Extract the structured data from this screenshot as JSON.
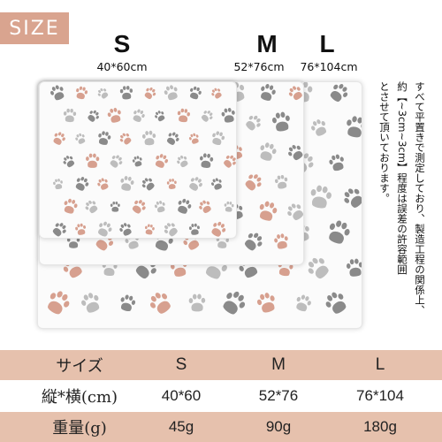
{
  "badge": {
    "text": "SIZE",
    "color": "#d9a48f"
  },
  "sizes": [
    {
      "letter": "S",
      "dims": "40*60cm"
    },
    {
      "letter": "M",
      "dims": "52*76cm"
    },
    {
      "letter": "L",
      "dims": "76*104cm"
    }
  ],
  "note": {
    "lines": [
      "すべて平置きで測定しており、製造工程の関係上、",
      "約【~3cm~3cm】程度は誤差の許容範囲",
      "とさせて頂いております。"
    ]
  },
  "table": {
    "rows": [
      {
        "label": "サイズ",
        "values": [
          "S",
          "M",
          "L"
        ]
      },
      {
        "label": "縦*横(cm)",
        "values": [
          "40*60",
          "52*76",
          "76*104"
        ]
      },
      {
        "label": "重量(g)",
        "values": [
          "45g",
          "90g",
          "180g"
        ]
      }
    ],
    "stripe_color": "#e6c1ad"
  },
  "pattern": {
    "colors": [
      "#8a8a8a",
      "#d7a08f",
      "#bdbdbd"
    ],
    "icon": "paw-print-icon"
  }
}
